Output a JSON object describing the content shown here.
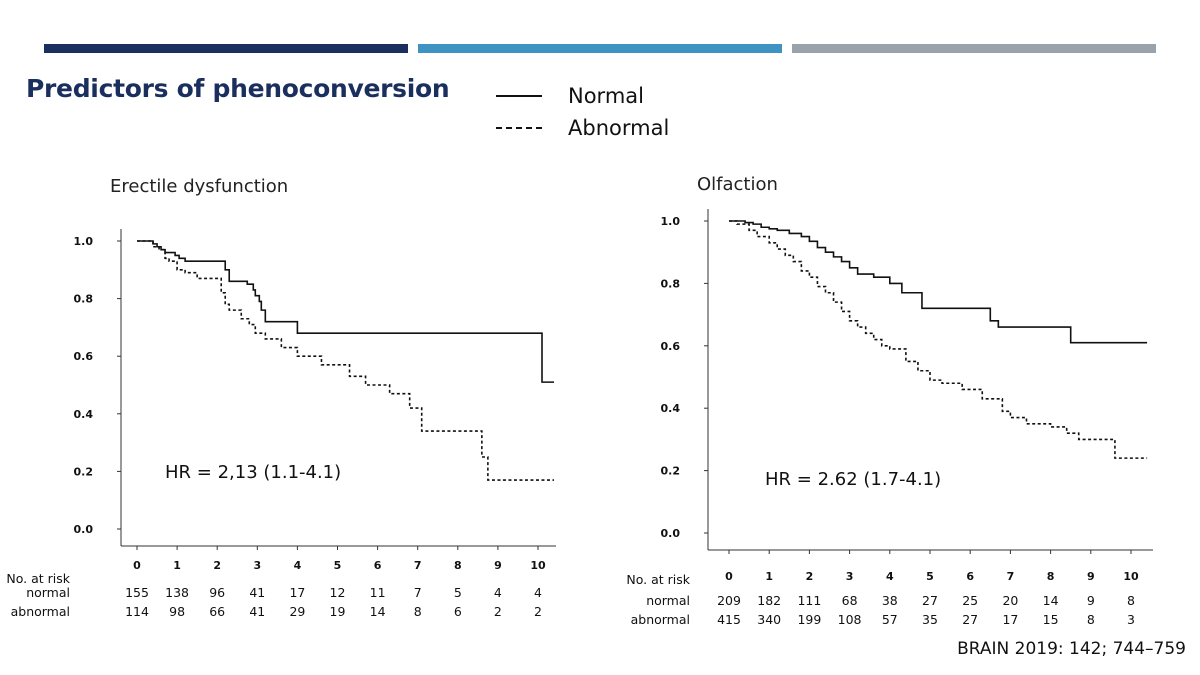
{
  "header": {
    "title": "Predictors of phenoconversion",
    "bar_colors": [
      "#1b2f5e",
      "#3f93c2",
      "#9aa3ab"
    ]
  },
  "legend": {
    "normal_label": "Normal",
    "abnormal_label": "Abnormal"
  },
  "citation": "BRAIN 2019: 142; 744–759",
  "chart_data": [
    {
      "type": "line",
      "title": "Erectile dysfunction",
      "annotation": "HR = 2,13 (1.1-4.1)",
      "xlabel": "",
      "ylabel": "",
      "xlim": [
        0,
        10.4
      ],
      "ylim": [
        0,
        1.0
      ],
      "x_ticks": [
        "0",
        "1",
        "2",
        "3",
        "4",
        "5",
        "6",
        "7",
        "8",
        "9",
        "10"
      ],
      "y_ticks": [
        "0.0",
        "0.2",
        "0.4",
        "0.6",
        "0.8",
        "1.0"
      ],
      "series": [
        {
          "name": "Normal",
          "style": "solid",
          "x": [
            0,
            0.4,
            0.5,
            0.6,
            0.7,
            0.8,
            0.95,
            1.05,
            1.2,
            1.35,
            2.2,
            2.3,
            2.6,
            2.75,
            2.9,
            2.95,
            3.05,
            3.1,
            3.2,
            4.0,
            10.1,
            10.1,
            10.4
          ],
          "y": [
            1.0,
            0.99,
            0.98,
            0.97,
            0.96,
            0.96,
            0.95,
            0.94,
            0.93,
            0.93,
            0.9,
            0.86,
            0.86,
            0.85,
            0.83,
            0.81,
            0.79,
            0.76,
            0.72,
            0.68,
            0.68,
            0.51,
            0.51
          ]
        },
        {
          "name": "Abnormal",
          "style": "dashed",
          "x": [
            0,
            0.4,
            0.55,
            0.7,
            0.8,
            1.0,
            1.2,
            1.5,
            2.1,
            2.2,
            2.3,
            2.6,
            2.8,
            2.95,
            3.2,
            3.6,
            4.0,
            4.6,
            5.3,
            5.7,
            6.3,
            6.8,
            7.1,
            8.6,
            8.75,
            10.4
          ],
          "y": [
            1.0,
            0.98,
            0.97,
            0.94,
            0.93,
            0.9,
            0.89,
            0.87,
            0.82,
            0.78,
            0.76,
            0.73,
            0.71,
            0.68,
            0.66,
            0.63,
            0.6,
            0.57,
            0.53,
            0.5,
            0.47,
            0.42,
            0.34,
            0.25,
            0.17,
            0.17
          ]
        }
      ],
      "risk_table": {
        "header": "No. at risk",
        "rows": [
          {
            "label": "normal",
            "values": [
              "155",
              "138",
              "96",
              "41",
              "17",
              "12",
              "11",
              "7",
              "5",
              "4",
              "4"
            ]
          },
          {
            "label": "abnormal",
            "values": [
              "114",
              "98",
              "66",
              "41",
              "29",
              "19",
              "14",
              "8",
              "6",
              "2",
              "2"
            ]
          }
        ]
      }
    },
    {
      "type": "line",
      "title": "Olfaction",
      "annotation": "HR = 2.62 (1.7-4.1)",
      "xlabel": "",
      "ylabel": "",
      "xlim": [
        0,
        10.4
      ],
      "ylim": [
        0,
        1.0
      ],
      "x_ticks": [
        "0",
        "1",
        "2",
        "3",
        "4",
        "5",
        "6",
        "7",
        "8",
        "9",
        "10"
      ],
      "y_ticks": [
        "0.0",
        "0.2",
        "0.4",
        "0.6",
        "0.8",
        "1.0"
      ],
      "series": [
        {
          "name": "Normal",
          "style": "solid",
          "x": [
            0,
            0.4,
            0.6,
            0.8,
            1.0,
            1.2,
            1.5,
            1.8,
            2.0,
            2.2,
            2.4,
            2.6,
            2.8,
            3.0,
            3.2,
            3.6,
            4.0,
            4.3,
            4.8,
            6.5,
            6.7,
            8.5,
            10.4
          ],
          "y": [
            1.0,
            0.995,
            0.99,
            0.98,
            0.975,
            0.97,
            0.96,
            0.95,
            0.935,
            0.915,
            0.9,
            0.885,
            0.87,
            0.85,
            0.83,
            0.82,
            0.8,
            0.77,
            0.72,
            0.68,
            0.66,
            0.61,
            0.61
          ]
        },
        {
          "name": "Abnormal",
          "style": "dashed",
          "x": [
            0,
            0.2,
            0.5,
            0.7,
            1.0,
            1.2,
            1.4,
            1.6,
            1.8,
            2.0,
            2.2,
            2.4,
            2.6,
            2.8,
            3.0,
            3.2,
            3.4,
            3.6,
            3.8,
            4.0,
            4.4,
            4.7,
            5.0,
            5.3,
            5.8,
            6.3,
            6.8,
            7.0,
            7.4,
            8.0,
            8.4,
            8.7,
            9.6,
            10.4
          ],
          "y": [
            1.0,
            0.99,
            0.97,
            0.95,
            0.93,
            0.91,
            0.89,
            0.87,
            0.84,
            0.82,
            0.79,
            0.77,
            0.74,
            0.71,
            0.68,
            0.66,
            0.64,
            0.62,
            0.6,
            0.59,
            0.55,
            0.52,
            0.49,
            0.48,
            0.46,
            0.43,
            0.39,
            0.37,
            0.35,
            0.34,
            0.32,
            0.3,
            0.24,
            0.24
          ]
        }
      ],
      "risk_table": {
        "header": "No. at risk",
        "rows": [
          {
            "label": "normal",
            "values": [
              "209",
              "182",
              "111",
              "68",
              "38",
              "27",
              "25",
              "20",
              "14",
              "9",
              "8"
            ]
          },
          {
            "label": "abnormal",
            "values": [
              "415",
              "340",
              "199",
              "108",
              "57",
              "35",
              "27",
              "17",
              "15",
              "8",
              "3"
            ]
          }
        ]
      }
    }
  ]
}
